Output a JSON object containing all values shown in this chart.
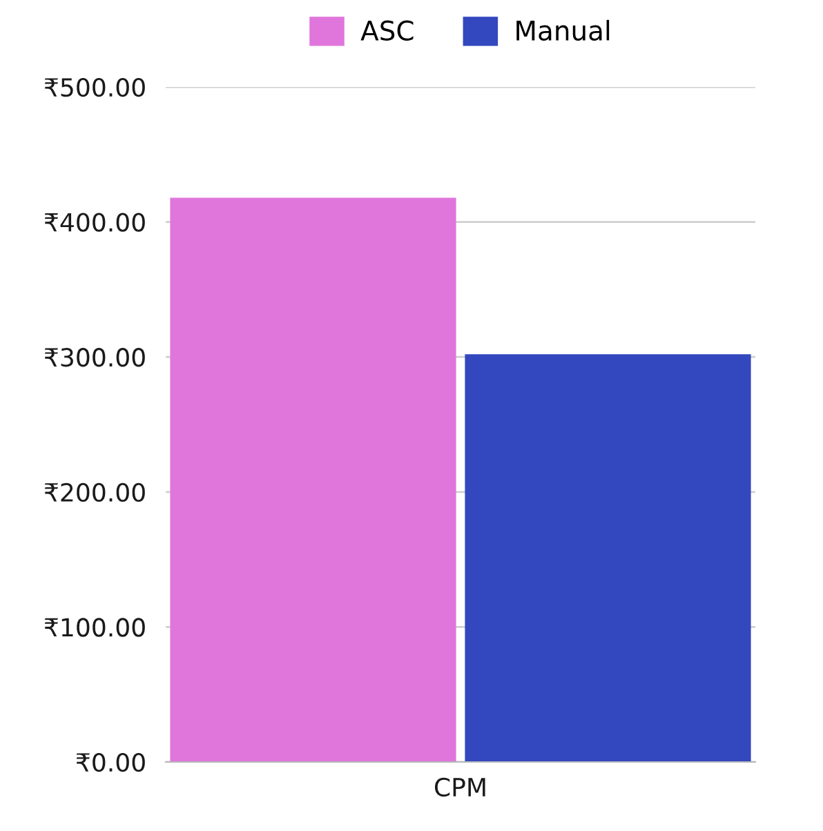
{
  "chart_data": {
    "type": "bar",
    "categories": [
      "CPM"
    ],
    "series": [
      {
        "name": "ASC",
        "color": "#e076dc",
        "values": [
          418
        ]
      },
      {
        "name": "Manual",
        "color": "#3347be",
        "values": [
          302
        ]
      }
    ],
    "ylim": [
      0,
      500
    ],
    "yticks": [
      {
        "value": 0,
        "label": "₹0.00"
      },
      {
        "value": 100,
        "label": "₹100.00"
      },
      {
        "value": 200,
        "label": "₹200.00"
      },
      {
        "value": 300,
        "label": "₹300.00"
      },
      {
        "value": 400,
        "label": "₹400.00"
      },
      {
        "value": 500,
        "label": "₹500.00"
      }
    ],
    "grid": "y",
    "legend": "top"
  }
}
